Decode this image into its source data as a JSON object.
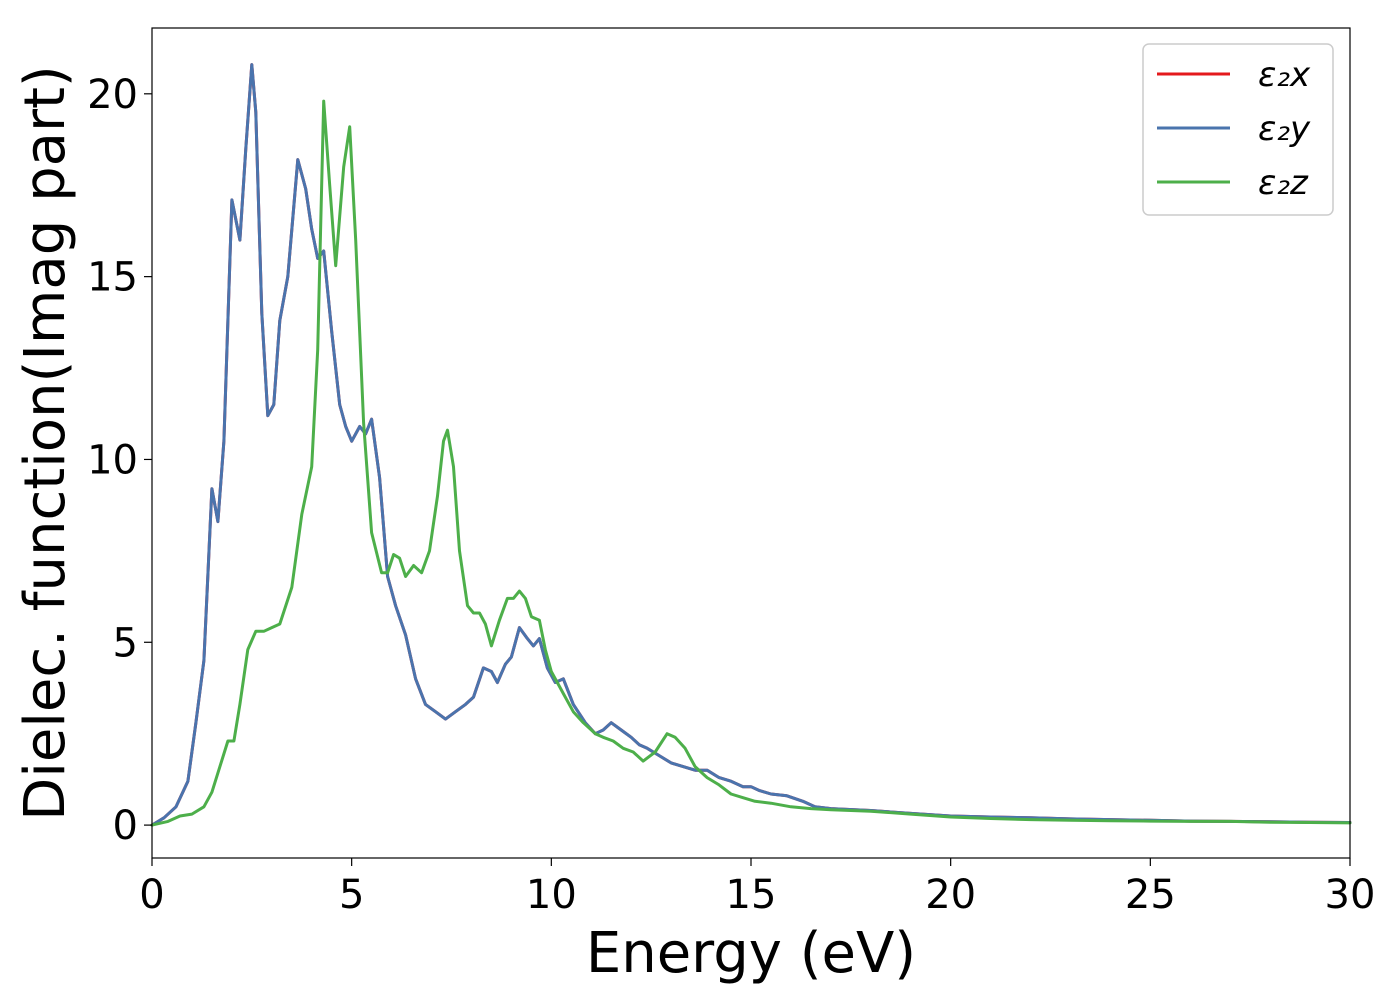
{
  "chart_data": {
    "type": "line",
    "xlabel": "Energy (eV)",
    "ylabel": "Dielec. function(Imag part)",
    "xlim": [
      0,
      30
    ],
    "ylim": [
      -0.9,
      21.8
    ],
    "xticks": [
      0,
      5,
      10,
      15,
      20,
      25,
      30
    ],
    "yticks": [
      0,
      5,
      10,
      15,
      20
    ],
    "grid": false,
    "legend_position": "top-right",
    "series": [
      {
        "name": "ε₂x",
        "color": "#e41a1c",
        "points": [
          [
            0,
            0
          ],
          [
            0.3,
            0.2
          ],
          [
            0.6,
            0.5
          ],
          [
            0.9,
            1.2
          ],
          [
            1.1,
            2.8
          ],
          [
            1.3,
            4.5
          ],
          [
            1.5,
            9.2
          ],
          [
            1.65,
            8.3
          ],
          [
            1.8,
            10.5
          ],
          [
            2.0,
            17.1
          ],
          [
            2.2,
            16.0
          ],
          [
            2.35,
            18.5
          ],
          [
            2.5,
            20.8
          ],
          [
            2.6,
            19.5
          ],
          [
            2.75,
            14.0
          ],
          [
            2.9,
            11.2
          ],
          [
            3.05,
            11.5
          ],
          [
            3.2,
            13.8
          ],
          [
            3.4,
            15.0
          ],
          [
            3.65,
            18.2
          ],
          [
            3.85,
            17.4
          ],
          [
            4.0,
            16.3
          ],
          [
            4.15,
            15.5
          ],
          [
            4.3,
            15.7
          ],
          [
            4.5,
            13.5
          ],
          [
            4.7,
            11.5
          ],
          [
            4.85,
            10.9
          ],
          [
            5.0,
            10.5
          ],
          [
            5.2,
            10.9
          ],
          [
            5.35,
            10.7
          ],
          [
            5.5,
            11.1
          ],
          [
            5.7,
            9.5
          ],
          [
            5.9,
            6.8
          ],
          [
            6.1,
            6.0
          ],
          [
            6.35,
            5.2
          ],
          [
            6.6,
            4.0
          ],
          [
            6.85,
            3.3
          ],
          [
            7.1,
            3.1
          ],
          [
            7.35,
            2.9
          ],
          [
            7.6,
            3.1
          ],
          [
            7.85,
            3.3
          ],
          [
            8.05,
            3.5
          ],
          [
            8.3,
            4.3
          ],
          [
            8.5,
            4.2
          ],
          [
            8.65,
            3.9
          ],
          [
            8.85,
            4.4
          ],
          [
            9.0,
            4.6
          ],
          [
            9.2,
            5.4
          ],
          [
            9.4,
            5.1
          ],
          [
            9.55,
            4.9
          ],
          [
            9.7,
            5.1
          ],
          [
            9.9,
            4.3
          ],
          [
            10.1,
            3.9
          ],
          [
            10.3,
            4.0
          ],
          [
            10.55,
            3.3
          ],
          [
            10.85,
            2.8
          ],
          [
            11.1,
            2.5
          ],
          [
            11.3,
            2.6
          ],
          [
            11.5,
            2.8
          ],
          [
            11.75,
            2.6
          ],
          [
            12.0,
            2.4
          ],
          [
            12.2,
            2.2
          ],
          [
            12.4,
            2.1
          ],
          [
            12.7,
            1.9
          ],
          [
            13.0,
            1.7
          ],
          [
            13.3,
            1.6
          ],
          [
            13.6,
            1.5
          ],
          [
            13.9,
            1.5
          ],
          [
            14.2,
            1.3
          ],
          [
            14.5,
            1.2
          ],
          [
            14.8,
            1.05
          ],
          [
            15.0,
            1.05
          ],
          [
            15.2,
            0.95
          ],
          [
            15.5,
            0.85
          ],
          [
            15.9,
            0.8
          ],
          [
            16.3,
            0.65
          ],
          [
            16.6,
            0.5
          ],
          [
            17.0,
            0.45
          ],
          [
            18.0,
            0.4
          ],
          [
            19.0,
            0.32
          ],
          [
            20.0,
            0.25
          ],
          [
            21.0,
            0.22
          ],
          [
            22.0,
            0.2
          ],
          [
            23.0,
            0.17
          ],
          [
            24.0,
            0.15
          ],
          [
            25.0,
            0.13
          ],
          [
            26.0,
            0.11
          ],
          [
            27.0,
            0.1
          ],
          [
            28.0,
            0.09
          ],
          [
            29.0,
            0.08
          ],
          [
            30.0,
            0.07
          ]
        ]
      },
      {
        "name": "ε₂y",
        "color": "#4a74ad",
        "points": [
          [
            0,
            0
          ],
          [
            0.3,
            0.2
          ],
          [
            0.6,
            0.5
          ],
          [
            0.9,
            1.2
          ],
          [
            1.1,
            2.8
          ],
          [
            1.3,
            4.5
          ],
          [
            1.5,
            9.2
          ],
          [
            1.65,
            8.3
          ],
          [
            1.8,
            10.5
          ],
          [
            2.0,
            17.1
          ],
          [
            2.2,
            16.0
          ],
          [
            2.35,
            18.5
          ],
          [
            2.5,
            20.8
          ],
          [
            2.6,
            19.5
          ],
          [
            2.75,
            14.0
          ],
          [
            2.9,
            11.2
          ],
          [
            3.05,
            11.5
          ],
          [
            3.2,
            13.8
          ],
          [
            3.4,
            15.0
          ],
          [
            3.65,
            18.2
          ],
          [
            3.85,
            17.4
          ],
          [
            4.0,
            16.3
          ],
          [
            4.15,
            15.5
          ],
          [
            4.3,
            15.7
          ],
          [
            4.5,
            13.5
          ],
          [
            4.7,
            11.5
          ],
          [
            4.85,
            10.9
          ],
          [
            5.0,
            10.5
          ],
          [
            5.2,
            10.9
          ],
          [
            5.35,
            10.7
          ],
          [
            5.5,
            11.1
          ],
          [
            5.7,
            9.5
          ],
          [
            5.9,
            6.8
          ],
          [
            6.1,
            6.0
          ],
          [
            6.35,
            5.2
          ],
          [
            6.6,
            4.0
          ],
          [
            6.85,
            3.3
          ],
          [
            7.1,
            3.1
          ],
          [
            7.35,
            2.9
          ],
          [
            7.6,
            3.1
          ],
          [
            7.85,
            3.3
          ],
          [
            8.05,
            3.5
          ],
          [
            8.3,
            4.3
          ],
          [
            8.5,
            4.2
          ],
          [
            8.65,
            3.9
          ],
          [
            8.85,
            4.4
          ],
          [
            9.0,
            4.6
          ],
          [
            9.2,
            5.4
          ],
          [
            9.4,
            5.1
          ],
          [
            9.55,
            4.9
          ],
          [
            9.7,
            5.1
          ],
          [
            9.9,
            4.3
          ],
          [
            10.1,
            3.9
          ],
          [
            10.3,
            4.0
          ],
          [
            10.55,
            3.3
          ],
          [
            10.85,
            2.8
          ],
          [
            11.1,
            2.5
          ],
          [
            11.3,
            2.6
          ],
          [
            11.5,
            2.8
          ],
          [
            11.75,
            2.6
          ],
          [
            12.0,
            2.4
          ],
          [
            12.2,
            2.2
          ],
          [
            12.4,
            2.1
          ],
          [
            12.7,
            1.9
          ],
          [
            13.0,
            1.7
          ],
          [
            13.3,
            1.6
          ],
          [
            13.6,
            1.5
          ],
          [
            13.9,
            1.5
          ],
          [
            14.2,
            1.3
          ],
          [
            14.5,
            1.2
          ],
          [
            14.8,
            1.05
          ],
          [
            15.0,
            1.05
          ],
          [
            15.2,
            0.95
          ],
          [
            15.5,
            0.85
          ],
          [
            15.9,
            0.8
          ],
          [
            16.3,
            0.65
          ],
          [
            16.6,
            0.5
          ],
          [
            17.0,
            0.45
          ],
          [
            18.0,
            0.4
          ],
          [
            19.0,
            0.32
          ],
          [
            20.0,
            0.25
          ],
          [
            21.0,
            0.22
          ],
          [
            22.0,
            0.2
          ],
          [
            23.0,
            0.17
          ],
          [
            24.0,
            0.15
          ],
          [
            25.0,
            0.13
          ],
          [
            26.0,
            0.11
          ],
          [
            27.0,
            0.1
          ],
          [
            28.0,
            0.09
          ],
          [
            29.0,
            0.08
          ],
          [
            30.0,
            0.07
          ]
        ]
      },
      {
        "name": "ε₂z",
        "color": "#4daf4a",
        "points": [
          [
            0,
            0
          ],
          [
            0.4,
            0.1
          ],
          [
            0.7,
            0.25
          ],
          [
            1.0,
            0.3
          ],
          [
            1.3,
            0.5
          ],
          [
            1.5,
            0.9
          ],
          [
            1.7,
            1.6
          ],
          [
            1.9,
            2.3
          ],
          [
            2.05,
            2.3
          ],
          [
            2.2,
            3.3
          ],
          [
            2.4,
            4.8
          ],
          [
            2.6,
            5.3
          ],
          [
            2.8,
            5.3
          ],
          [
            3.0,
            5.4
          ],
          [
            3.2,
            5.5
          ],
          [
            3.5,
            6.5
          ],
          [
            3.75,
            8.5
          ],
          [
            4.0,
            9.8
          ],
          [
            4.15,
            13.0
          ],
          [
            4.3,
            19.8
          ],
          [
            4.45,
            17.5
          ],
          [
            4.6,
            15.3
          ],
          [
            4.8,
            18.0
          ],
          [
            4.95,
            19.1
          ],
          [
            5.1,
            16.0
          ],
          [
            5.3,
            11.0
          ],
          [
            5.5,
            8.0
          ],
          [
            5.75,
            6.9
          ],
          [
            5.9,
            6.9
          ],
          [
            6.05,
            7.4
          ],
          [
            6.2,
            7.3
          ],
          [
            6.35,
            6.8
          ],
          [
            6.55,
            7.1
          ],
          [
            6.75,
            6.9
          ],
          [
            6.95,
            7.5
          ],
          [
            7.15,
            9.0
          ],
          [
            7.3,
            10.5
          ],
          [
            7.4,
            10.8
          ],
          [
            7.55,
            9.8
          ],
          [
            7.7,
            7.5
          ],
          [
            7.9,
            6.0
          ],
          [
            8.05,
            5.8
          ],
          [
            8.2,
            5.8
          ],
          [
            8.35,
            5.5
          ],
          [
            8.5,
            4.9
          ],
          [
            8.7,
            5.6
          ],
          [
            8.9,
            6.2
          ],
          [
            9.05,
            6.2
          ],
          [
            9.2,
            6.4
          ],
          [
            9.35,
            6.2
          ],
          [
            9.5,
            5.7
          ],
          [
            9.7,
            5.6
          ],
          [
            9.85,
            4.8
          ],
          [
            10.0,
            4.2
          ],
          [
            10.3,
            3.6
          ],
          [
            10.55,
            3.1
          ],
          [
            10.8,
            2.8
          ],
          [
            11.1,
            2.5
          ],
          [
            11.3,
            2.4
          ],
          [
            11.55,
            2.3
          ],
          [
            11.8,
            2.1
          ],
          [
            12.05,
            2.0
          ],
          [
            12.3,
            1.75
          ],
          [
            12.6,
            2.0
          ],
          [
            12.9,
            2.5
          ],
          [
            13.1,
            2.4
          ],
          [
            13.35,
            2.1
          ],
          [
            13.6,
            1.6
          ],
          [
            13.9,
            1.3
          ],
          [
            14.2,
            1.1
          ],
          [
            14.5,
            0.85
          ],
          [
            14.8,
            0.75
          ],
          [
            15.1,
            0.65
          ],
          [
            15.5,
            0.6
          ],
          [
            16.0,
            0.5
          ],
          [
            16.5,
            0.45
          ],
          [
            17.0,
            0.42
          ],
          [
            18.0,
            0.38
          ],
          [
            19.0,
            0.3
          ],
          [
            20.0,
            0.22
          ],
          [
            21.0,
            0.18
          ],
          [
            22.0,
            0.15
          ],
          [
            23.0,
            0.13
          ],
          [
            24.0,
            0.12
          ],
          [
            25.0,
            0.11
          ],
          [
            26.0,
            0.1
          ],
          [
            27.0,
            0.1
          ],
          [
            28.0,
            0.08
          ],
          [
            29.0,
            0.07
          ],
          [
            30.0,
            0.06
          ]
        ]
      }
    ]
  }
}
